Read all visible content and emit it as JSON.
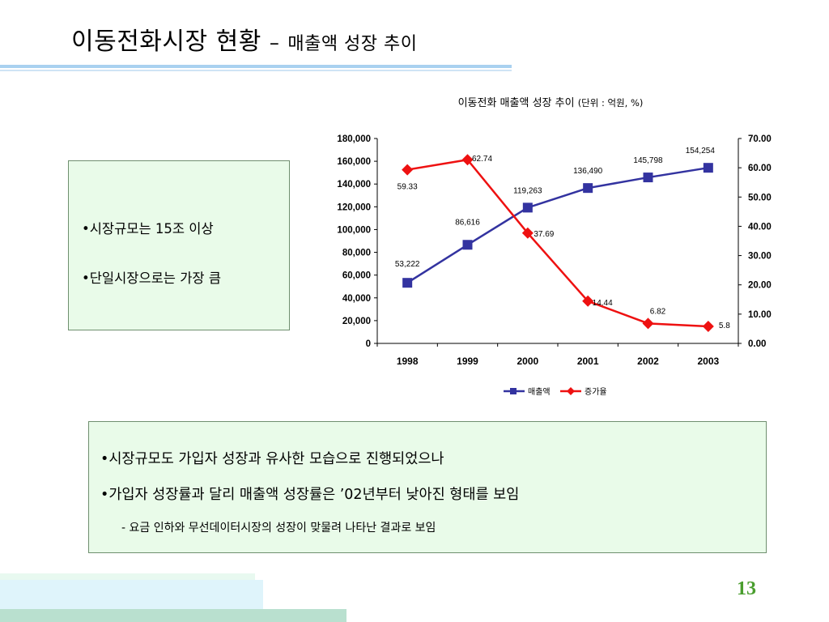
{
  "slide": {
    "title_main": "이동전화시장 현황",
    "title_sep": "–",
    "title_sub": "매출액 성장 추이",
    "page_number": "13"
  },
  "box1": {
    "items": [
      "•시장규모는 15조 이상",
      "•단일시장으로는 가장 큼"
    ]
  },
  "box2": {
    "items": [
      "•시장규모도 가입자 성장과 유사한 모습으로 진행되었으나",
      "•가입자 성장률과 달리 매출액 성장률은 ’02년부터 낮아진 형태를 보임"
    ],
    "subitem": "- 요금 인하와 무선데이터시장의 성장이 맞물려 나타난 결과로 보임"
  },
  "chart_data": {
    "type": "line",
    "title": "이동전화 매출액 성장 추이",
    "title_unit": "(단위 : 억원, %)",
    "categories": [
      "1998",
      "1999",
      "2000",
      "2001",
      "2002",
      "2003"
    ],
    "series": [
      {
        "name": "매출액",
        "axis": "left",
        "color": "#3333a0",
        "marker": "square",
        "values": [
          53222,
          86616,
          119263,
          136490,
          145798,
          154254
        ],
        "labels": [
          "53,222",
          "86,616",
          "119,263",
          "136,490",
          "145,798",
          "154,254"
        ]
      },
      {
        "name": "증가율",
        "axis": "right",
        "color": "#ee1111",
        "marker": "diamond",
        "values": [
          59.33,
          62.74,
          37.69,
          14.44,
          6.82,
          5.8
        ],
        "labels": [
          "59.33",
          "62.74",
          "37.69",
          "14.44",
          "6.82",
          "5.8"
        ]
      }
    ],
    "y_left": {
      "min": 0,
      "max": 180000,
      "ticks": [
        "0",
        "20,000",
        "40,000",
        "60,000",
        "80,000",
        "100,000",
        "120,000",
        "140,000",
        "160,000",
        "180,000"
      ]
    },
    "y_right": {
      "min": 0,
      "max": 70,
      "ticks": [
        "0.00",
        "10.00",
        "20.00",
        "30.00",
        "40.00",
        "50.00",
        "60.00",
        "70.00"
      ]
    },
    "grid": false,
    "legend_position": "bottom"
  }
}
